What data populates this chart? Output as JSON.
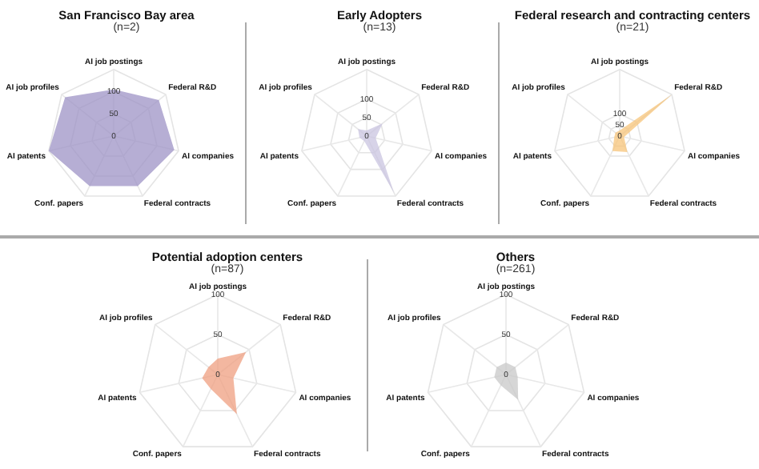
{
  "chart_data": [
    {
      "type": "radar",
      "title": "San Francisco Bay area",
      "subtitle": "(n=2)",
      "categories": [
        "AI job postings",
        "Federal R&D",
        "AI companies",
        "Federal contracts",
        "Conf. papers",
        "AI patents",
        "AI job profiles"
      ],
      "ylim": [
        0,
        150
      ],
      "yticks": [
        0,
        50,
        100
      ],
      "grid": true,
      "series": [
        {
          "color": "#9d93c6",
          "values": [
            105,
            130,
            140,
            125,
            125,
            150,
            140
          ]
        }
      ]
    },
    {
      "type": "radar",
      "title": "Early Adopters",
      "subtitle": "(n=13)",
      "categories": [
        "AI job postings",
        "Federal R&D",
        "AI companies",
        "Federal contracts",
        "Conf. papers",
        "AI patents",
        "AI job profiles"
      ],
      "ylim": [
        0,
        180
      ],
      "yticks": [
        0,
        50,
        100
      ],
      "grid": true,
      "series": [
        {
          "color": "#c9c4e0",
          "values": [
            15,
            55,
            25,
            170,
            15,
            20,
            30
          ]
        }
      ]
    },
    {
      "type": "radar",
      "title": "Federal research and contracting centers",
      "subtitle": "(n=21)",
      "categories": [
        "AI job postings",
        "Federal R&D",
        "AI companies",
        "Federal contracts",
        "Conf. papers",
        "AI patents",
        "AI job profiles"
      ],
      "ylim": [
        0,
        300
      ],
      "yticks": [
        0,
        50,
        100
      ],
      "grid": true,
      "series": [
        {
          "color": "#f7c47a",
          "values": [
            25,
            300,
            20,
            80,
            75,
            25,
            25
          ]
        }
      ]
    },
    {
      "type": "radar",
      "title": "Potential adoption centers",
      "subtitle": "(n=87)",
      "categories": [
        "AI job postings",
        "Federal R&D",
        "AI companies",
        "Federal contracts",
        "Conf. papers",
        "AI patents",
        "AI job profiles"
      ],
      "ylim": [
        0,
        100
      ],
      "yticks": [
        0,
        50,
        100
      ],
      "grid": true,
      "series": [
        {
          "color": "#ef9f80",
          "values": [
            20,
            45,
            20,
            55,
            20,
            20,
            15
          ]
        }
      ]
    },
    {
      "type": "radar",
      "title": "Others",
      "subtitle": "(n=261)",
      "categories": [
        "AI job postings",
        "Federal R&D",
        "AI companies",
        "Federal contracts",
        "Conf. papers",
        "AI patents",
        "AI job profiles"
      ],
      "ylim": [
        0,
        100
      ],
      "yticks": [
        0,
        50,
        100
      ],
      "grid": true,
      "series": [
        {
          "color": "#c8c8c8",
          "values": [
            15,
            15,
            15,
            35,
            15,
            15,
            15
          ]
        }
      ]
    }
  ]
}
